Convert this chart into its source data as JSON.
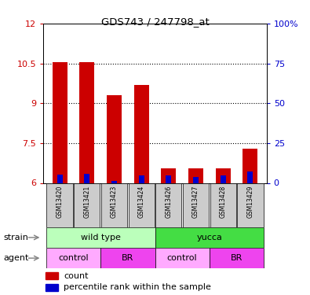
{
  "title": "GDS743 / 247798_at",
  "samples": [
    "GSM13420",
    "GSM13421",
    "GSM13423",
    "GSM13424",
    "GSM13426",
    "GSM13427",
    "GSM13428",
    "GSM13429"
  ],
  "red_values": [
    10.55,
    10.55,
    9.3,
    9.7,
    6.55,
    6.55,
    6.55,
    7.3
  ],
  "blue_pct": [
    5.0,
    5.5,
    1.0,
    4.5,
    4.5,
    3.5,
    4.5,
    7.0
  ],
  "ymin": 6,
  "ymax": 12,
  "yticks": [
    6,
    7.5,
    9,
    10.5,
    12
  ],
  "ytick_labels": [
    "6",
    "7.5",
    "9",
    "10.5",
    "12"
  ],
  "right_yticks": [
    0,
    25,
    50,
    75,
    100
  ],
  "right_ytick_labels": [
    "0",
    "25",
    "50",
    "75",
    "100%"
  ],
  "left_color": "#cc0000",
  "right_color": "#0000cc",
  "red_bar_width": 0.55,
  "blue_bar_width": 0.2,
  "strain_groups": [
    {
      "label": "wild type",
      "start": 0,
      "end": 4,
      "color": "#bbffbb"
    },
    {
      "label": "yucca",
      "start": 4,
      "end": 8,
      "color": "#44dd44"
    }
  ],
  "agent_groups": [
    {
      "label": "control",
      "start": 0,
      "end": 2,
      "color": "#ffaaff"
    },
    {
      "label": "BR",
      "start": 2,
      "end": 4,
      "color": "#ee44ee"
    },
    {
      "label": "control",
      "start": 4,
      "end": 6,
      "color": "#ffaaff"
    },
    {
      "label": "BR",
      "start": 6,
      "end": 8,
      "color": "#ee44ee"
    }
  ],
  "bg_color": "#ffffff",
  "sample_bg": "#cccccc",
  "legend_red": "#cc0000",
  "legend_blue": "#0000cc"
}
